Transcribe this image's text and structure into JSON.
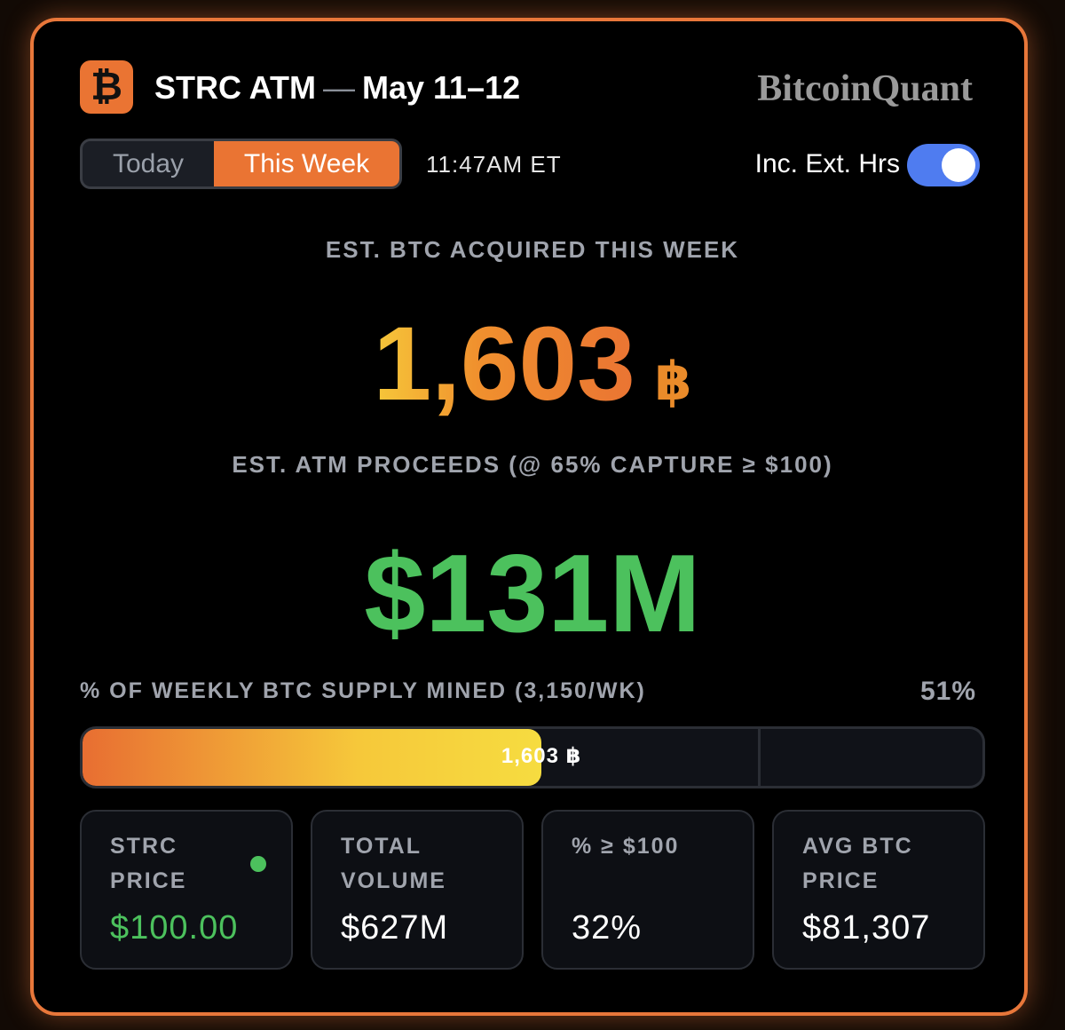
{
  "header": {
    "icon": "₿",
    "title": "STRC ATM",
    "separator": "—",
    "date": "May 11–12",
    "brand": "BitcoinQuant"
  },
  "controls": {
    "tabs": [
      "Today",
      "This Week"
    ],
    "time": "11:47AM ET",
    "toggle_label": "Inc. Ext. Hrs"
  },
  "btc": {
    "label": "EST. BTC ACQUIRED THIS WEEK",
    "value": "1,603",
    "unit": "฿"
  },
  "proceeds": {
    "label": "EST. ATM PROCEEDS (@ 65% CAPTURE ≥ $100)",
    "value": "$131M"
  },
  "supply": {
    "label": "% OF WEEKLY BTC SUPPLY MINED (3,150/WK)",
    "percent": {
      "value": 51,
      "label": "51%"
    },
    "bar_label": "1,603 ฿"
  },
  "stats": [
    {
      "label": "STRC PRICE",
      "value": "$100.00"
    },
    {
      "label": "TOTAL VOLUME",
      "value": "$627M"
    },
    {
      "label": "% ≥ $100",
      "value": "32%"
    },
    {
      "label": "AVG BTC PRICE",
      "value": "$81,307"
    }
  ]
}
